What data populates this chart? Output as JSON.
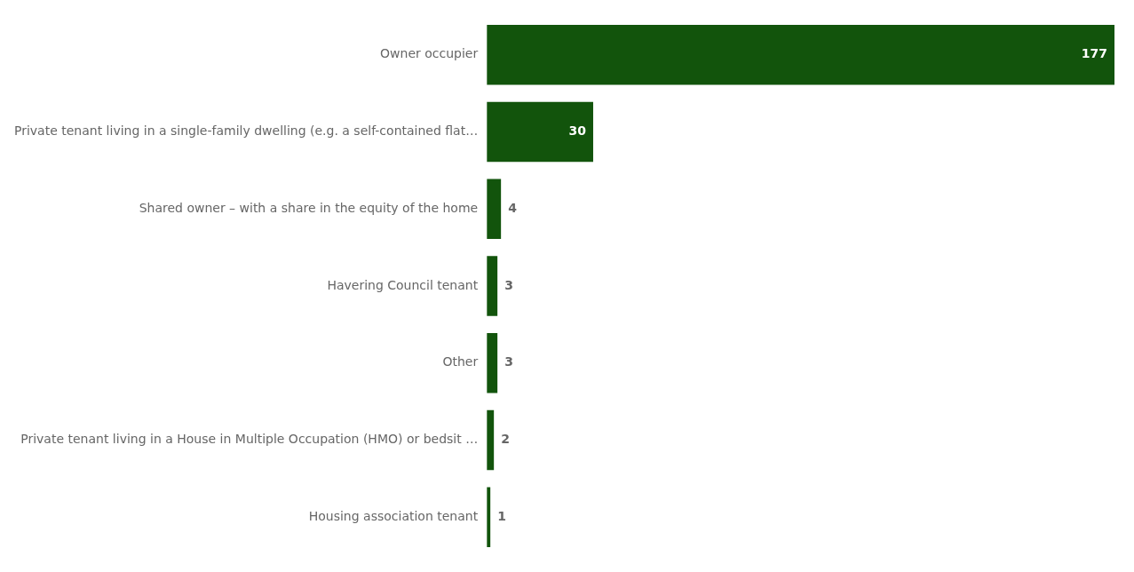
{
  "chart_data": {
    "type": "bar",
    "orientation": "horizontal",
    "categories": [
      "Owner occupier",
      "Private tenant living in a single-family dwelling (e.g. a self-contained flat…",
      "Shared owner – with a share in the equity of the home",
      "Havering Council tenant",
      "Other",
      "Private tenant living in a House in Multiple Occupation (HMO) or bedsit …",
      "Housing association tenant"
    ],
    "values": [
      177,
      30,
      4,
      3,
      3,
      2,
      1
    ],
    "color": "#12540c",
    "data_labels": true,
    "grid": false,
    "legend": false,
    "tick_labels": "y"
  }
}
